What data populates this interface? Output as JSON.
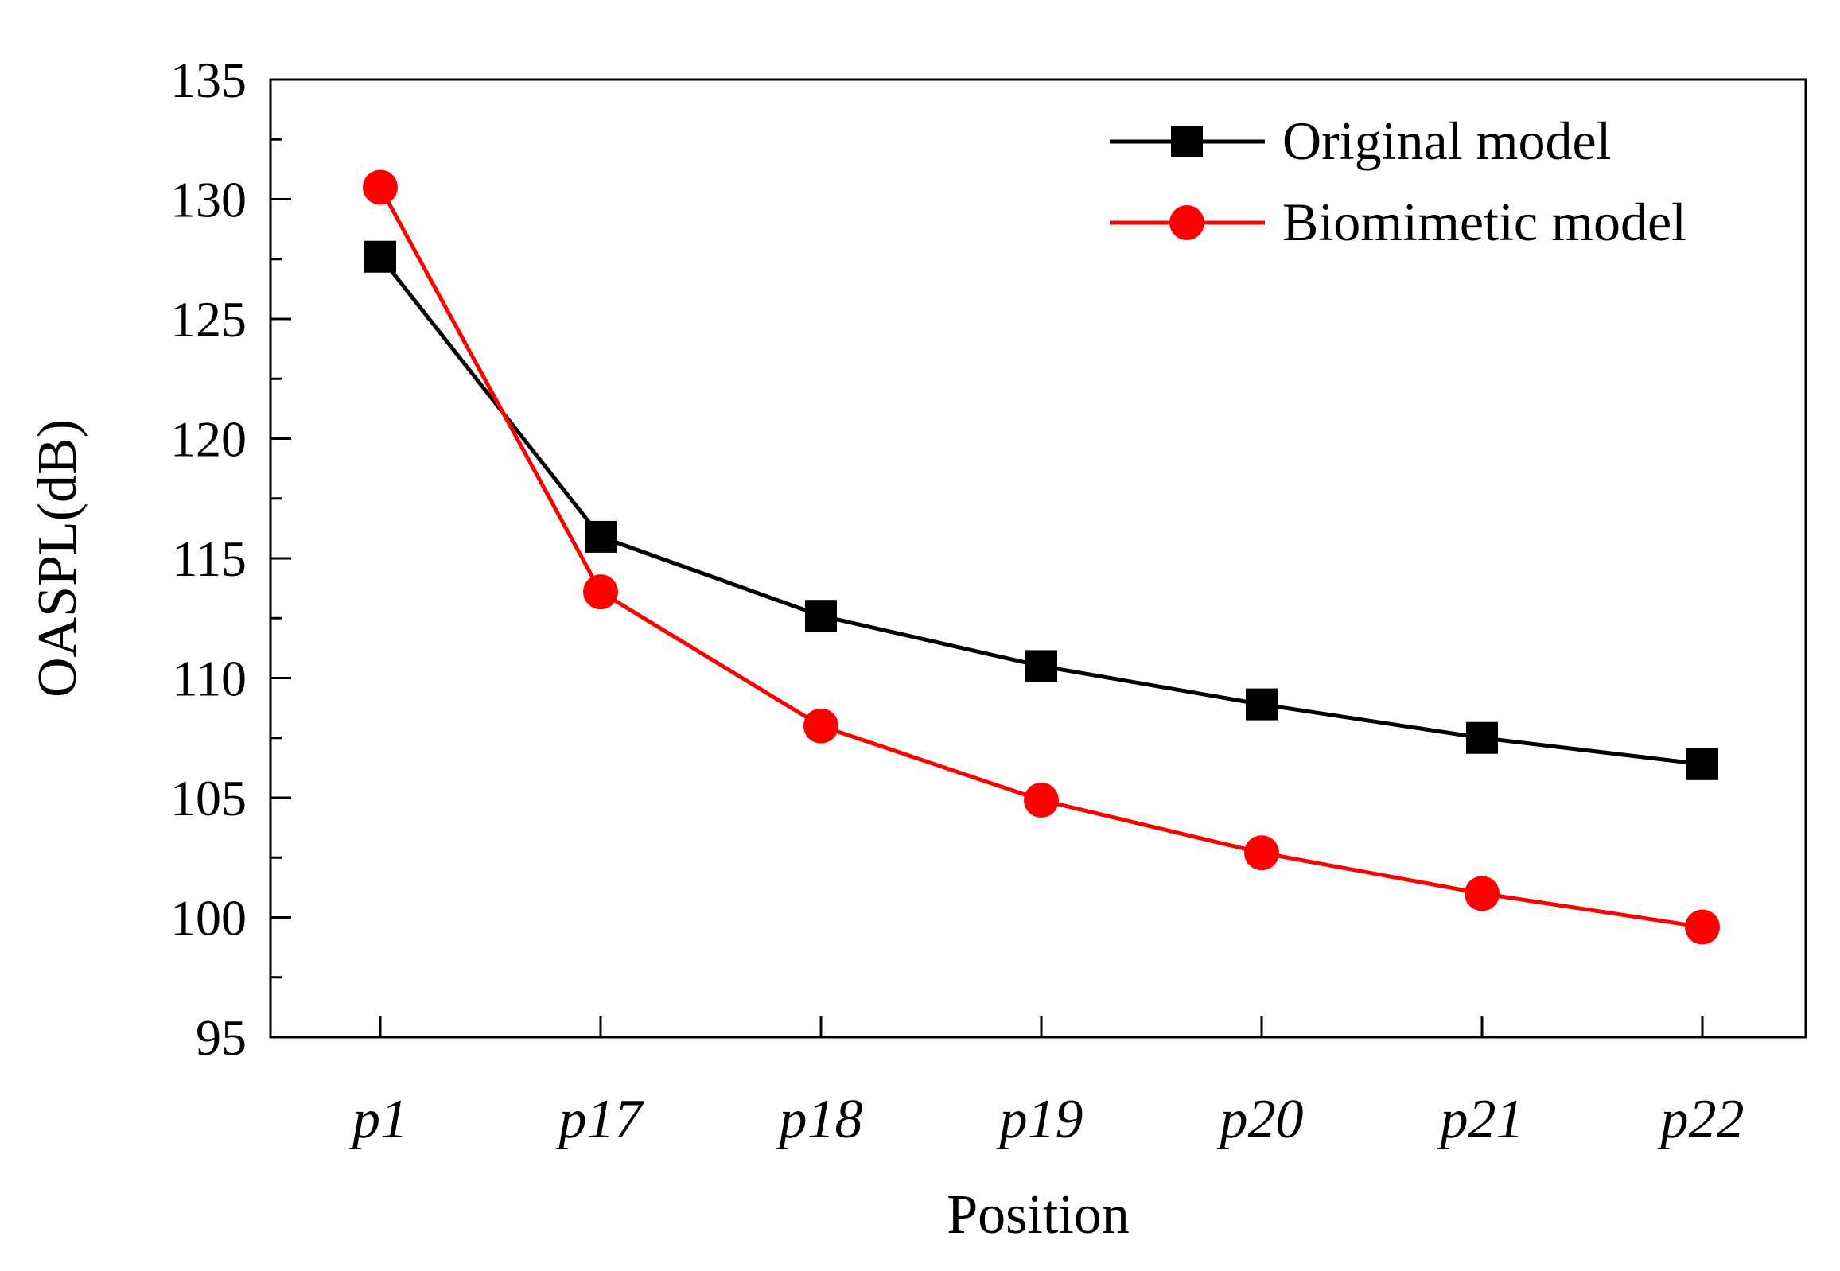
{
  "chart_data": {
    "type": "line",
    "xlabel": "Position",
    "ylabel": "OASPL(dB)",
    "categories": [
      "p1",
      "p17",
      "p18",
      "p19",
      "p20",
      "p21",
      "p22"
    ],
    "ylim": [
      95,
      135
    ],
    "yticks": [
      95,
      100,
      105,
      110,
      115,
      120,
      125,
      130,
      135
    ],
    "grid": false,
    "legend_position": "top-right",
    "series": [
      {
        "name": "Original model",
        "color": "#000000",
        "marker": "square",
        "values": [
          127.6,
          115.9,
          112.6,
          110.5,
          108.9,
          107.5,
          106.4
        ]
      },
      {
        "name": "Biomimetic model",
        "color": "#ff0000",
        "marker": "circle",
        "values": [
          130.5,
          113.6,
          108.0,
          104.9,
          102.7,
          101.0,
          99.6
        ]
      }
    ]
  }
}
